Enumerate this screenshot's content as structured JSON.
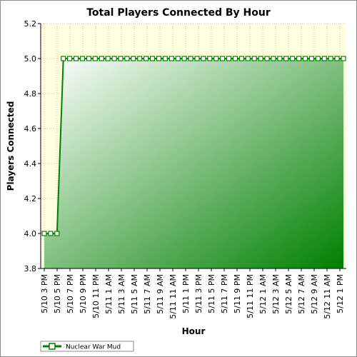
{
  "chart_data": {
    "type": "area",
    "title": "Total Players Connected By Hour",
    "xlabel": "Hour",
    "ylabel": "Players Connected",
    "ylim": [
      3.8,
      5.2
    ],
    "yticks": [
      "5.2",
      "5.0",
      "4.8",
      "4.6",
      "4.4",
      "4.2",
      "4.0",
      "3.8"
    ],
    "xtick_labels": [
      "5/10 3 PM",
      "5/10 5 PM",
      "5/10 7 PM",
      "5/10 9 PM",
      "5/10 11 PM",
      "5/11 1 AM",
      "5/11 3 AM",
      "5/11 5 AM",
      "5/11 7 AM",
      "5/11 9 AM",
      "5/11 11 AM",
      "5/11 1 PM",
      "5/11 3 PM",
      "5/11 5 PM",
      "5/11 7 PM",
      "5/11 9 PM",
      "5/11 11 PM",
      "5/12 1 AM",
      "5/12 3 AM",
      "5/12 5 AM",
      "5/12 7 AM",
      "5/12 9 AM",
      "5/12 11 AM",
      "5/12 1 PM"
    ],
    "grid": true,
    "legend_position": "bottom-left",
    "series": [
      {
        "name": "Nuclear War Mud",
        "color": "#008000",
        "values": [
          4,
          4,
          4,
          5,
          5,
          5,
          5,
          5,
          5,
          5,
          5,
          5,
          5,
          5,
          5,
          5,
          5,
          5,
          5,
          5,
          5,
          5,
          5,
          5,
          5,
          5,
          5,
          5,
          5,
          5,
          5,
          5,
          5,
          5,
          5,
          5,
          5,
          5,
          5,
          5,
          5,
          5,
          5,
          5,
          5,
          5,
          5,
          5
        ]
      }
    ]
  }
}
